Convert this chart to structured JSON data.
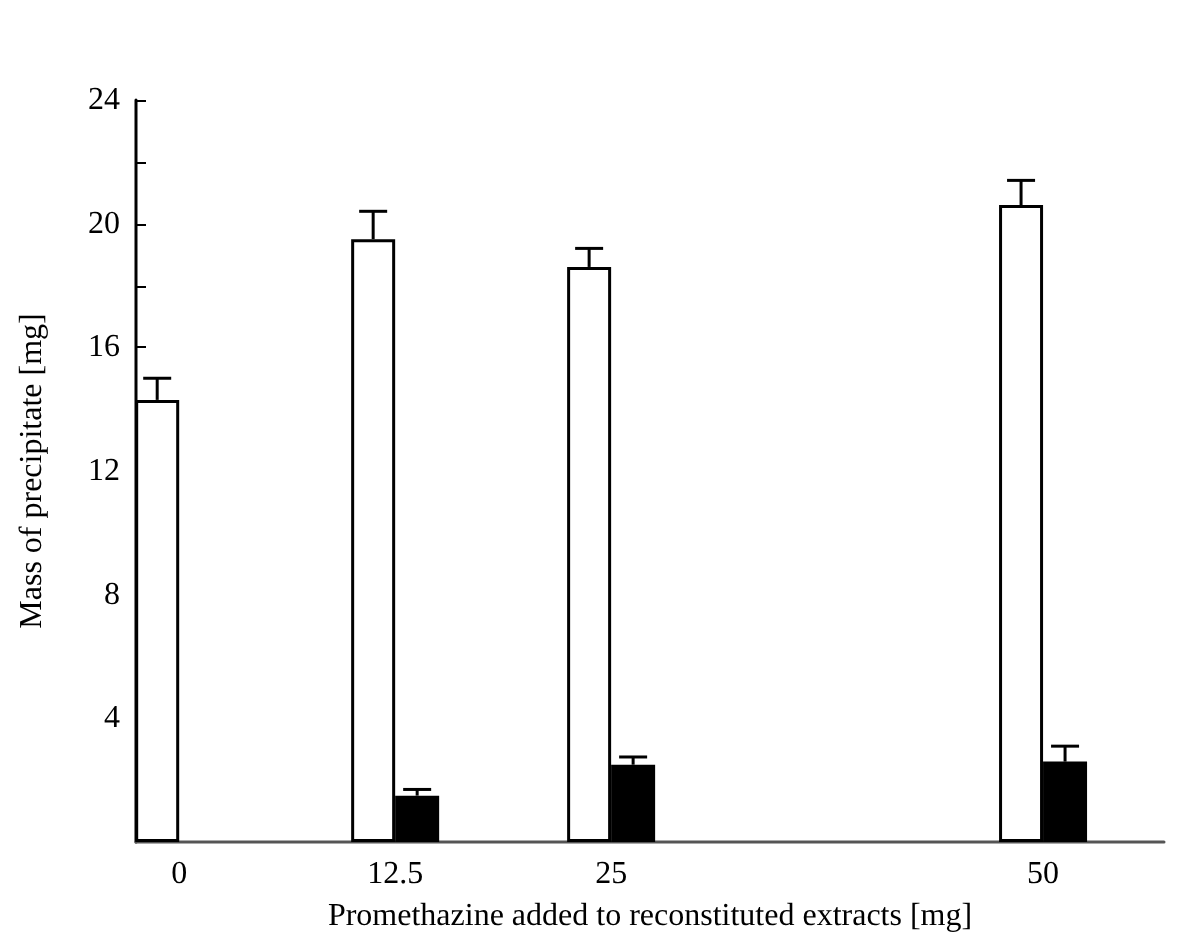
{
  "chart_data": {
    "type": "bar",
    "xlabel": "Promethazine added to reconstituted extracts [mg]",
    "ylabel": "Mass of precipitate [mg]",
    "x": [
      0,
      12.5,
      25,
      50
    ],
    "series": [
      {
        "color": "#ffffff",
        "values": [
          14.3,
          19.5,
          18.6,
          20.6
        ],
        "errors": [
          [
            14.3,
            15.0
          ],
          [
            19.5,
            20.4
          ],
          [
            18.6,
            19.2
          ],
          [
            20.6,
            21.4
          ]
        ]
      },
      {
        "color": "#000000",
        "values": [
          null,
          1.5,
          2.5,
          2.6
        ],
        "errors": [
          null,
          [
            1.5,
            1.7
          ],
          [
            2.5,
            2.75
          ],
          [
            2.6,
            3.1
          ]
        ]
      }
    ],
    "xlim": [
      -2.5,
      57
    ],
    "xticks": [
      0,
      12.5,
      25,
      50
    ],
    "ylim": [
      0,
      24
    ],
    "yticks": [
      {
        "value": 2,
        "label": null
      },
      4,
      {
        "value": 6,
        "label": null
      },
      8,
      {
        "value": 10,
        "label": null
      },
      12,
      {
        "value": 14,
        "label": null
      },
      16,
      {
        "value": 18,
        "label": null
      },
      20,
      {
        "value": 22,
        "label": null
      },
      24
    ],
    "grid": false
  }
}
